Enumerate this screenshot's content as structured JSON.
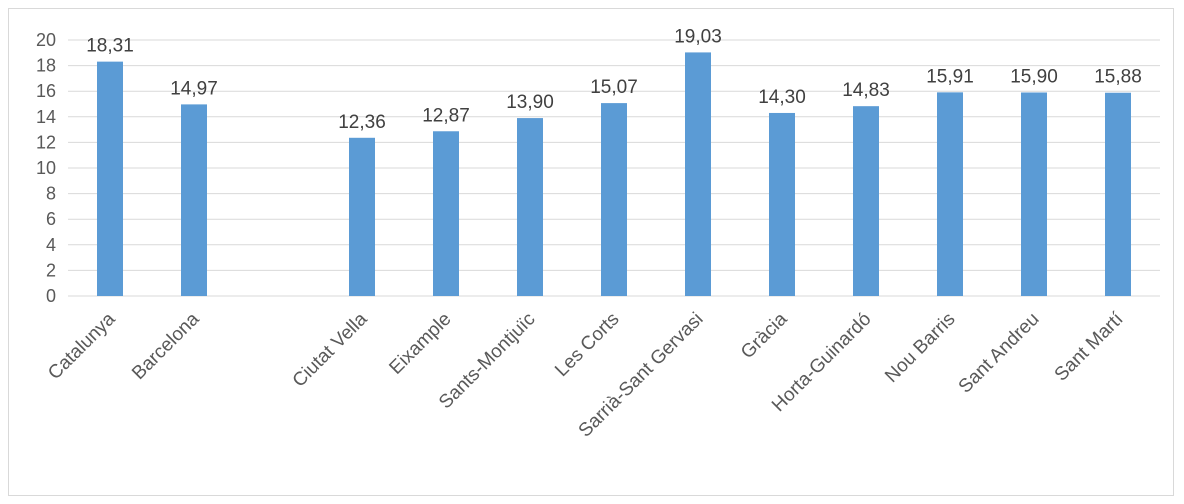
{
  "chart_data": {
    "type": "bar",
    "categories": [
      "Catalunya",
      "Barcelona",
      "",
      "Ciutat Vella",
      "Eixample",
      "Sants-Montjuïc",
      "Les Corts",
      "Sarrià-Sant Gervasi",
      "Gràcia",
      "Horta-Guinardó",
      "Nou Barris",
      "Sant Andreu",
      "Sant Martí"
    ],
    "values": [
      18.31,
      14.97,
      null,
      12.36,
      12.87,
      13.9,
      15.07,
      19.03,
      14.3,
      14.83,
      15.91,
      15.9,
      15.88
    ],
    "value_labels": [
      "18,31",
      "14,97",
      "",
      "12,36",
      "12,87",
      "13,90",
      "15,07",
      "19,03",
      "14,30",
      "14,83",
      "15,91",
      "15,90",
      "15,88"
    ],
    "y_ticks": [
      "0",
      "2",
      "4",
      "6",
      "8",
      "10",
      "12",
      "14",
      "16",
      "18",
      "20"
    ],
    "ylim": [
      0,
      20
    ],
    "grid": true,
    "bar_color": "#5b9bd5",
    "grid_color": "#d9d9d9"
  }
}
